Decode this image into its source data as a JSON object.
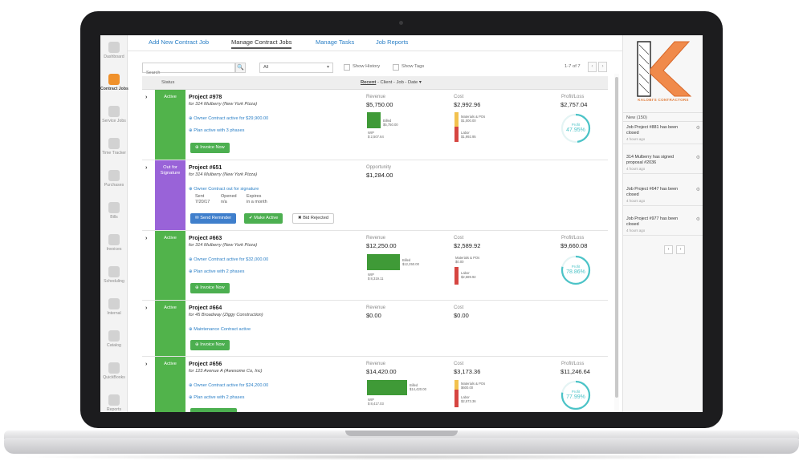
{
  "tabs": [
    {
      "label": "Add New Contract Job",
      "active": false
    },
    {
      "label": "Manage Contract Jobs",
      "active": true
    },
    {
      "label": "Manage Tasks",
      "active": false
    },
    {
      "label": "Job Reports",
      "active": false
    }
  ],
  "nav": [
    {
      "label": "Dashboard",
      "icon": "dashboard-icon"
    },
    {
      "label": "Contract Jobs",
      "icon": "contract-jobs-icon"
    },
    {
      "label": "Service Jobs",
      "icon": "map-pin-icon"
    },
    {
      "label": "Time Tracker",
      "icon": "clock-icon"
    },
    {
      "label": "Purchases",
      "icon": "cart-icon"
    },
    {
      "label": "Bills",
      "icon": "bills-icon"
    },
    {
      "label": "Invoices",
      "icon": "invoices-icon"
    },
    {
      "label": "Scheduling",
      "icon": "calendar-icon"
    },
    {
      "label": "Internal",
      "icon": "internal-icon"
    },
    {
      "label": "Catalog",
      "icon": "catalog-icon"
    },
    {
      "label": "QuickBooks",
      "icon": "folder-icon"
    },
    {
      "label": "Reports",
      "icon": "reports-icon"
    }
  ],
  "filters": {
    "search_placeholder": "Search",
    "search_button": "🔍",
    "select_value": "All",
    "show_history": "Show History",
    "show_tags": "Show Tags",
    "pager": "1-7 of 7"
  },
  "header": {
    "status": "Status",
    "sort_active": "Recent",
    "sort_rest": " - Client - Job - Date"
  },
  "jobs": [
    {
      "status": "Active",
      "title": "Project #978",
      "client": "for 314 Mulberry (New York Pizza)",
      "link1": "⊕ Owner Contract active for $29,900.00",
      "link2": "⊕ Plan active with 3 phases",
      "button": "⊕ Invoice Now",
      "rev_label": "Revenue",
      "rev": "$5,750.00",
      "cost_label": "Cost",
      "cost": "$2,992.96",
      "pl_label": "Profit/Loss",
      "pl": "$2,757.04",
      "profit_pct": "47.95%",
      "profit_frac": 0.4795,
      "billed": "$5,750.00",
      "wip": "$ 2,507.64",
      "materials": "$1,000.00",
      "labor": "$1,992.95"
    },
    {
      "status": "Out for Signature",
      "title": "Project #651",
      "client": "for 314 Mulberry (New York Pizza)",
      "link1": "⊕ Owner Contract out for signature",
      "sent_label": "Sent",
      "sent_val": "7/20/17",
      "opened_label": "Opened",
      "opened_val": "n/a",
      "expires_label": "Expires",
      "expires_val": "in a month",
      "btn_reminder": "✉ Send Reminder",
      "btn_active": "✔ Make Active",
      "btn_rejected": "✖ Bid Rejected",
      "opp_label": "Opportunity",
      "opp": "$1,284.00"
    },
    {
      "status": "Active",
      "title": "Project #663",
      "client": "for 314 Mulberry (New York Pizza)",
      "link1": "⊕ Owner Contract active for $32,000.00",
      "link2": "⊕ Plan active with 2 phases",
      "button": "⊕ Invoice Now",
      "rev_label": "Revenue",
      "rev": "$12,250.00",
      "cost_label": "Cost",
      "cost": "$2,589.92",
      "pl_label": "Profit/Loss",
      "pl": "$9,660.08",
      "profit_pct": "78.86%",
      "profit_frac": 0.7886,
      "billed": "$12,250.00",
      "wip": "$ 8,319.11",
      "materials": "$0.00",
      "labor": "$2,589.92"
    },
    {
      "status": "Active",
      "title": "Project #664",
      "client": "for 45 Broadway (Ziggy Construction)",
      "link1": "⊕ Maintenance Contract active",
      "button": "⊕ Invoice Now",
      "rev_label": "Revenue",
      "rev": "$0.00",
      "cost_label": "Cost",
      "cost": "$0.00"
    },
    {
      "status": "Active",
      "title": "Project #656",
      "client": "for 123 Avenue A (Awesome Co, Inc)",
      "link1": "⊕ Owner Contract active for $24,200.00",
      "link2": "⊕ Plan active with 2 phases",
      "rev_label": "Revenue",
      "rev": "$14,420.00",
      "cost_label": "Cost",
      "cost": "$3,173.36",
      "pl_label": "Profit/Loss",
      "pl": "$11,246.64",
      "profit_pct": "77.99%",
      "profit_frac": 0.7799,
      "billed": "$14,420.00",
      "wip": "$ 8,417.03",
      "materials": "$600.00",
      "labor": "$2,573.36"
    }
  ],
  "mini_labels": {
    "billed": "Billed",
    "wip": "WIP",
    "materials": "Materials & POs",
    "labor": "Labor",
    "profit": "Profit"
  },
  "sidebar": {
    "logo_letter": "K",
    "logo_caption": "KALOBI'S CONTRACTORS",
    "feed_header": "New (150)",
    "feed": [
      {
        "text": "Job Project #881 has been closed",
        "time": "4 hours ago"
      },
      {
        "text": "314 Mulberry has signed proposal #2036",
        "time": "4 hours ago"
      },
      {
        "text": "Job Project #647 has been closed",
        "time": "4 hours ago"
      },
      {
        "text": "Job Project #977 has been closed",
        "time": "4 hours ago"
      }
    ],
    "prev": "‹",
    "next": "›"
  },
  "colors": {
    "active": "#51b34b",
    "signature": "#9963d8",
    "link": "#2a7fc6",
    "accent": "#f0912b",
    "ring": "#4bc3c7"
  }
}
